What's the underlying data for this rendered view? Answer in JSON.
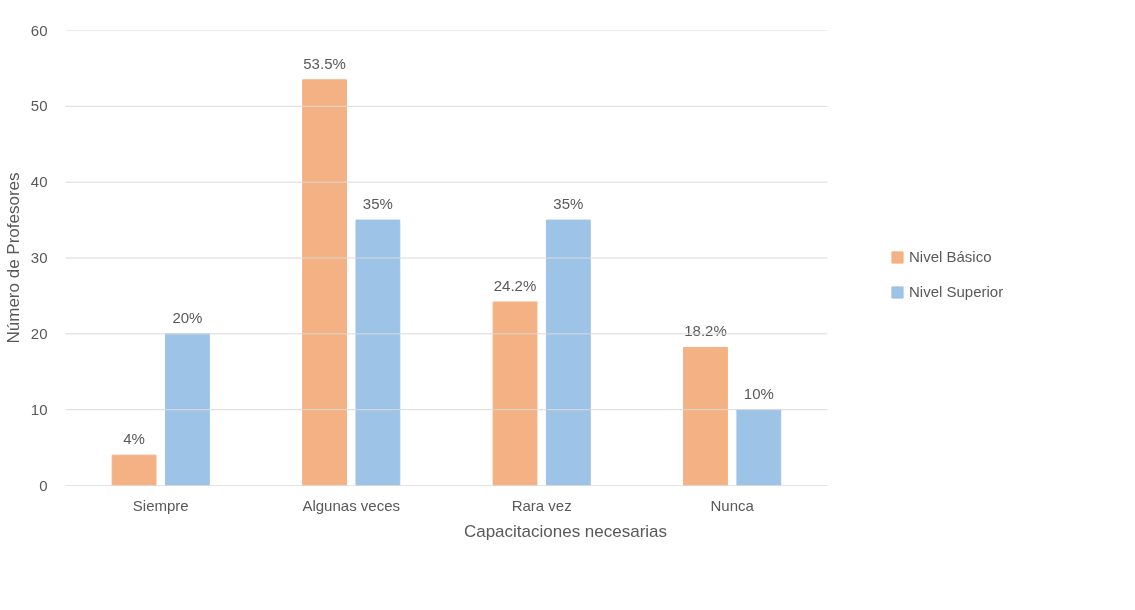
{
  "chart_data": {
    "type": "bar",
    "xlabel": "Capacitaciones necesarias",
    "ylabel": "Número de Profesores",
    "categories": [
      "Siempre",
      "Algunas veces",
      "Rara vez",
      "Nunca"
    ],
    "series": [
      {
        "name": "Nivel Básico",
        "color": "#f4b183",
        "values": [
          4,
          53.5,
          24.2,
          18.2
        ],
        "value_labels": [
          "4%",
          "53.5%",
          "24.2%",
          "18.2%"
        ]
      },
      {
        "name": "Nivel Superior",
        "color": "#9dc3e6",
        "values": [
          20,
          35,
          35,
          10
        ],
        "value_labels": [
          "20%",
          "35%",
          "35%",
          "10%"
        ]
      }
    ],
    "ylim": [
      0,
      60
    ],
    "yticks": [
      0,
      10,
      20,
      30,
      40,
      50,
      60
    ],
    "grid": "y",
    "legend": "right"
  }
}
